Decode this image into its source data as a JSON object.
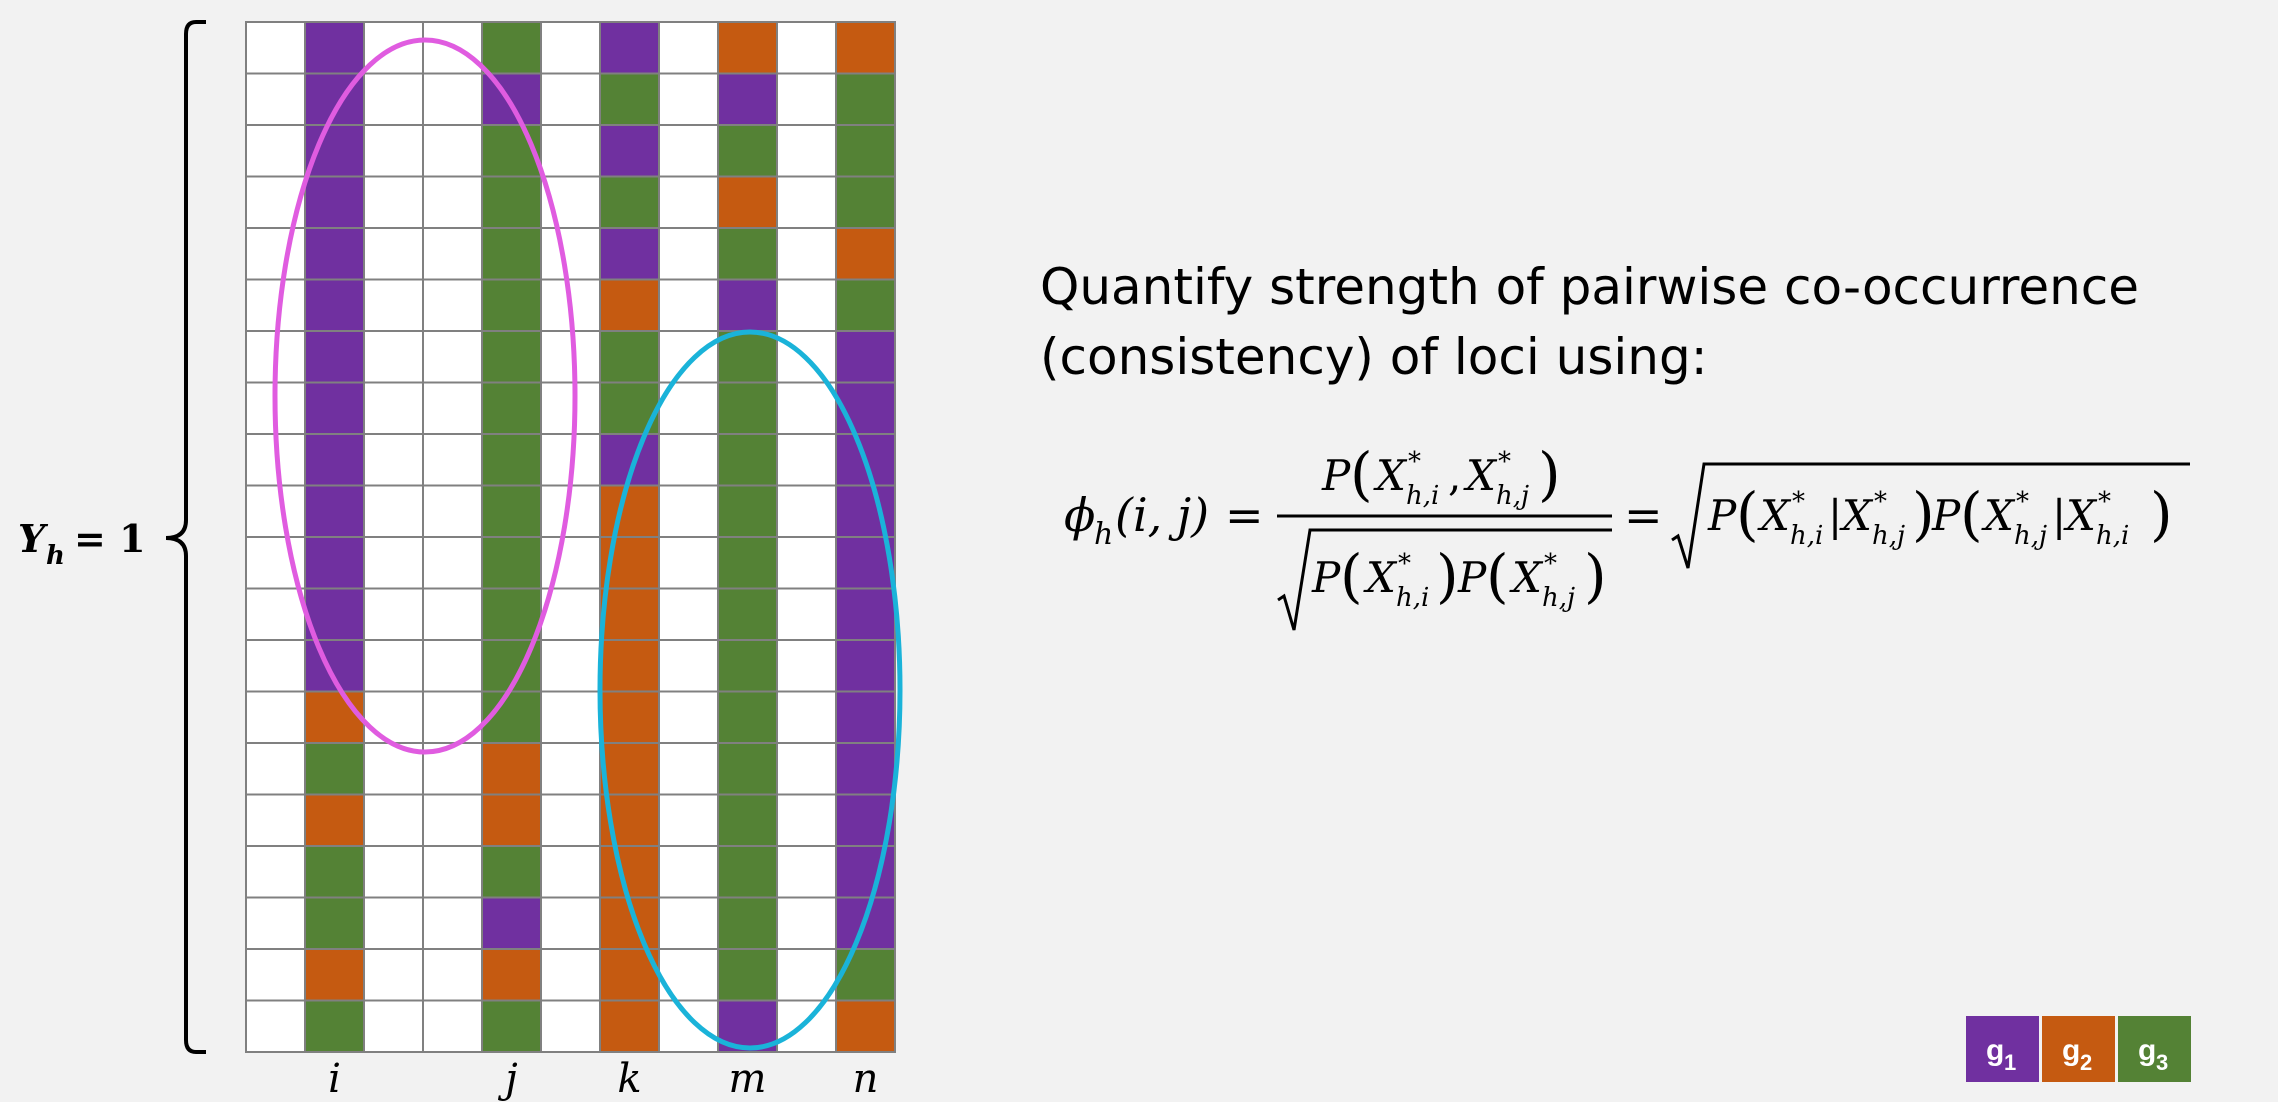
{
  "grid": {
    "columns": [
      "",
      "i",
      "",
      "",
      "j",
      "",
      "k",
      "",
      "m",
      "",
      "n"
    ],
    "empty_color": "#ffffff",
    "border_color": "#808080",
    "cells": [
      [
        "0",
        "g1",
        "0",
        "0",
        "g3",
        "0",
        "g1",
        "0",
        "g2",
        "0",
        "g2"
      ],
      [
        "0",
        "g1",
        "0",
        "0",
        "g1",
        "0",
        "g3",
        "0",
        "g1",
        "0",
        "g3"
      ],
      [
        "0",
        "g1",
        "0",
        "0",
        "g3",
        "0",
        "g1",
        "0",
        "g3",
        "0",
        "g3"
      ],
      [
        "0",
        "g1",
        "0",
        "0",
        "g3",
        "0",
        "g3",
        "0",
        "g2",
        "0",
        "g3"
      ],
      [
        "0",
        "g1",
        "0",
        "0",
        "g3",
        "0",
        "g1",
        "0",
        "g3",
        "0",
        "g2"
      ],
      [
        "0",
        "g1",
        "0",
        "0",
        "g3",
        "0",
        "g2",
        "0",
        "g1",
        "0",
        "g3"
      ],
      [
        "0",
        "g1",
        "0",
        "0",
        "g3",
        "0",
        "g3",
        "0",
        "g3",
        "0",
        "g1"
      ],
      [
        "0",
        "g1",
        "0",
        "0",
        "g3",
        "0",
        "g3",
        "0",
        "g3",
        "0",
        "g1"
      ],
      [
        "0",
        "g1",
        "0",
        "0",
        "g3",
        "0",
        "g1",
        "0",
        "g3",
        "0",
        "g1"
      ],
      [
        "0",
        "g1",
        "0",
        "0",
        "g3",
        "0",
        "g2",
        "0",
        "g3",
        "0",
        "g1"
      ],
      [
        "0",
        "g1",
        "0",
        "0",
        "g3",
        "0",
        "g2",
        "0",
        "g3",
        "0",
        "g1"
      ],
      [
        "0",
        "g1",
        "0",
        "0",
        "g3",
        "0",
        "g2",
        "0",
        "g3",
        "0",
        "g1"
      ],
      [
        "0",
        "g1",
        "0",
        "0",
        "g3",
        "0",
        "g2",
        "0",
        "g3",
        "0",
        "g1"
      ],
      [
        "0",
        "g2",
        "0",
        "0",
        "g3",
        "0",
        "g2",
        "0",
        "g3",
        "0",
        "g1"
      ],
      [
        "0",
        "g3",
        "0",
        "0",
        "g2",
        "0",
        "g2",
        "0",
        "g3",
        "0",
        "g1"
      ],
      [
        "0",
        "g2",
        "0",
        "0",
        "g2",
        "0",
        "g2",
        "0",
        "g3",
        "0",
        "g1"
      ],
      [
        "0",
        "g3",
        "0",
        "0",
        "g3",
        "0",
        "g2",
        "0",
        "g3",
        "0",
        "g1"
      ],
      [
        "0",
        "g3",
        "0",
        "0",
        "g1",
        "0",
        "g2",
        "0",
        "g3",
        "0",
        "g1"
      ],
      [
        "0",
        "g2",
        "0",
        "0",
        "g2",
        "0",
        "g2",
        "0",
        "g3",
        "0",
        "g3"
      ],
      [
        "0",
        "g3",
        "0",
        "0",
        "g3",
        "0",
        "g2",
        "0",
        "g1",
        "0",
        "g2"
      ]
    ]
  },
  "groups": [
    {
      "key": "g1",
      "label": "g",
      "sub": "1",
      "color": "#7030a0"
    },
    {
      "key": "g2",
      "label": "g",
      "sub": "2",
      "color": "#c55a11"
    },
    {
      "key": "g3",
      "label": "g",
      "sub": "3",
      "color": "#548235"
    }
  ],
  "ellipses": [
    {
      "color": "#e05ce0",
      "label": "pink"
    },
    {
      "color": "#1ab3d9",
      "label": "cyan"
    }
  ],
  "brace_label": {
    "var": "Y",
    "sub": "h",
    "eq": "= 1"
  },
  "headline": {
    "line1": "Quantify strength of pairwise co-occurrence",
    "line2": "(consistency) of loci using:"
  },
  "formula": {
    "lhs": "ϕ",
    "lhs_sub": "h",
    "lhs_args": "(i, j)",
    "eq": "=",
    "P": "P",
    "X": "X",
    "star": "*",
    "sub_hi": "h,i",
    "sub_hj": "h,j",
    "comma": ",",
    "bar": "|"
  }
}
